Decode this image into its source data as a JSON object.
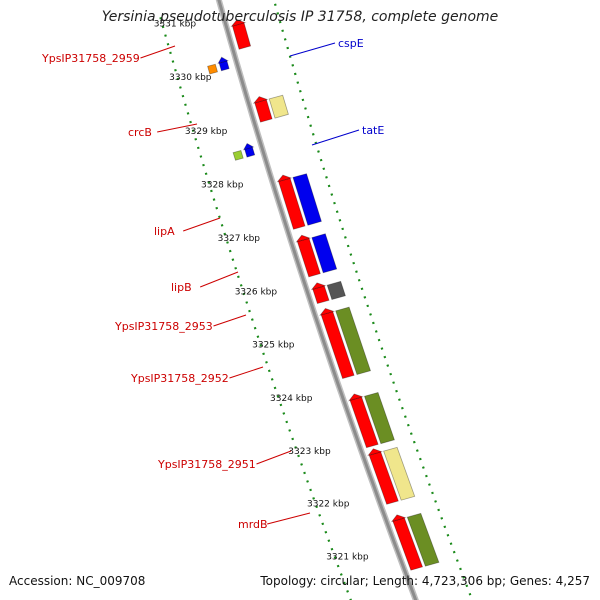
{
  "title": "Yersinia pseudotuberculosis IP 31758, complete genome",
  "footer": {
    "accession": "Accession: NC_009708",
    "summary": "Topology: circular; Length: 4,723,306 bp; Genes: 4,257"
  },
  "colors": {
    "label_left": "#cc0000",
    "label_right": "#0000cc",
    "backbone": "#8c8c8c",
    "ticks": "#1a8a1a",
    "gene_red": "#ff0000",
    "gene_blue": "#0000ee",
    "gene_olive": "#6b8e23",
    "gene_khaki": "#f0e68c",
    "gene_orange": "#ff8c00",
    "gene_lime": "#9acd32",
    "gene_grey": "#555555"
  },
  "scale_labels": [
    "3331 kbp",
    "3330 kbp",
    "3329 kbp",
    "3328 kbp",
    "3327 kbp",
    "3326 kbp",
    "3325 kbp",
    "3324 kbp",
    "3323 kbp",
    "3322 kbp",
    "3321 kbp"
  ],
  "left_labels": [
    "YpsIP31758_2959",
    "crcB",
    "lipA",
    "lipB",
    "YpsIP31758_2953",
    "YpsIP31758_2952",
    "YpsIP31758_2951",
    "mrdB"
  ],
  "right_labels": [
    "cspE",
    "tatE"
  ]
}
